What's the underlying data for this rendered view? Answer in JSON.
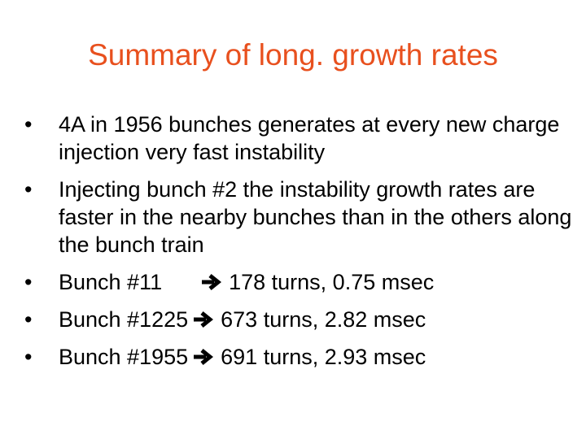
{
  "slide": {
    "title": "Summary of long. growth rates",
    "bullet_symbol": "•",
    "bullets": [
      {
        "text": "4A in 1956 bunches generates at every new charge injection very fast instability"
      },
      {
        "text": "Injecting bunch #2 the instability growth rates are faster in the nearby bunches than in the others along the bunch train"
      },
      {
        "label": "Bunch #11",
        "arrow_icon": "right-arrow-icon",
        "result": "178 turns, 0.75 msec"
      },
      {
        "label": "Bunch #1225",
        "arrow_icon": "right-arrow-icon",
        "result": "673 turns, 2.82 msec"
      },
      {
        "label": "Bunch #1955",
        "arrow_icon": "right-arrow-icon",
        "result": "691 turns, 2.93 msec"
      }
    ],
    "colors": {
      "title": "#e8501e",
      "body_text": "#000000",
      "background": "#ffffff"
    }
  }
}
